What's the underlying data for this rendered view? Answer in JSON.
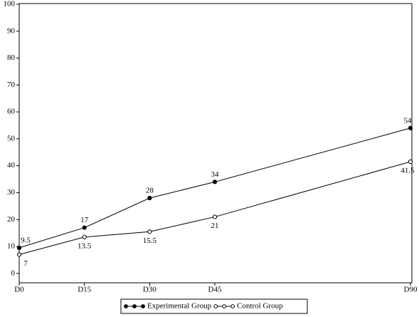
{
  "chart_data": {
    "type": "line",
    "x": [
      0,
      15,
      30,
      45,
      90
    ],
    "xlim": [
      0,
      90
    ],
    "xticks": [
      {
        "value": 0,
        "label": "D0"
      },
      {
        "value": 15,
        "label": "D15"
      },
      {
        "value": 30,
        "label": "D30"
      },
      {
        "value": 45,
        "label": "D45"
      },
      {
        "value": 90,
        "label": "D90"
      }
    ],
    "ylim": [
      -3.5,
      100
    ],
    "yticks": [
      0,
      10,
      20,
      30,
      40,
      50,
      60,
      70,
      80,
      90,
      100
    ],
    "grid": false,
    "legend": "bottom",
    "series": [
      {
        "name": "Experimental Group",
        "color": "#000000",
        "marker": "filled",
        "values": [
          9.5,
          17,
          28,
          34,
          54
        ]
      },
      {
        "name": "Control Group",
        "color": "#000000",
        "marker": "open",
        "values": [
          7,
          13.5,
          15.5,
          21,
          41.5
        ]
      }
    ]
  }
}
